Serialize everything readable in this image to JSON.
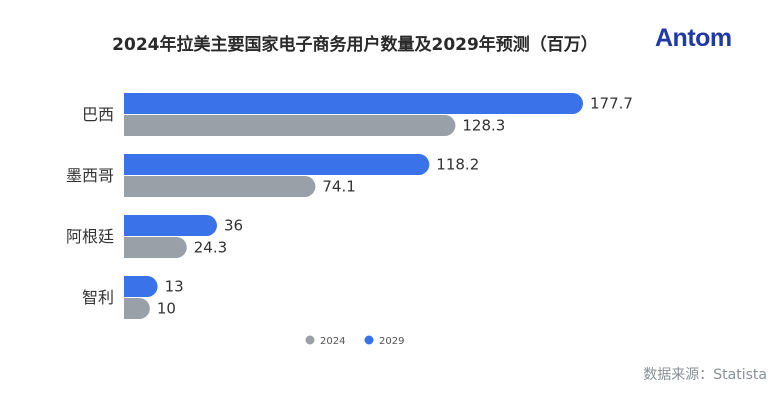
{
  "header": {
    "title": "2024年拉美主要国家电子商务用户数量及2029年预测（百万）",
    "logo": "Antom"
  },
  "footer": {
    "source": "数据来源：Statista"
  },
  "colors": {
    "series_2024": "#9aa0a8",
    "series_2029": "#3a72ea"
  },
  "chart_data": {
    "type": "bar",
    "orientation": "horizontal",
    "title": "2024年拉美主要国家电子商务用户数量及2029年预测（百万）",
    "categories": [
      "巴西",
      "墨西哥",
      "阿根廷",
      "智利"
    ],
    "series": [
      {
        "name": "2029",
        "values": [
          177.7,
          118.2,
          36,
          13
        ]
      },
      {
        "name": "2024",
        "values": [
          128.3,
          74.1,
          24.3,
          10
        ]
      }
    ],
    "legend": [
      "2024",
      "2029"
    ],
    "legend_position": "bottom",
    "grid": false,
    "xlim": [
      0,
      177.7
    ]
  }
}
